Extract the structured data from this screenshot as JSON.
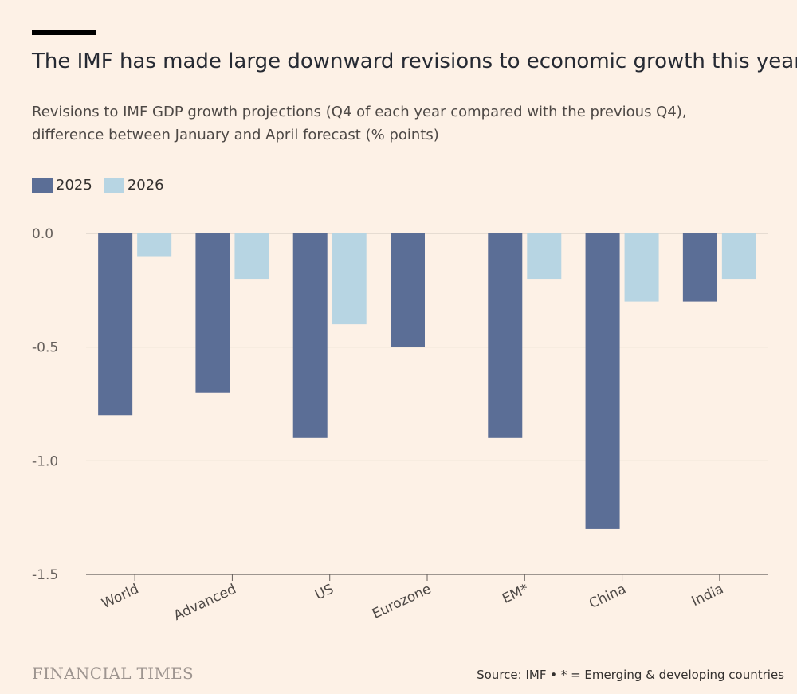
{
  "header": {
    "title": "The IMF has made large downward revisions to economic growth this year",
    "subtitle": "Revisions to IMF GDP growth projections (Q4 of each year compared with the previous Q4), difference between January and April forecast (% points)"
  },
  "footer": {
    "logo": "FINANCIAL TIMES",
    "source": "Source: IMF • * = Emerging & developing countries"
  },
  "colors": {
    "background": "#fdf1e6",
    "series_2025": "#5b6e96",
    "series_2026": "#b7d5e3",
    "grid": "#cfc6bd",
    "axis": "#66605c"
  },
  "chart_data": {
    "type": "bar",
    "categories": [
      "World",
      "Advanced",
      "US",
      "Eurozone",
      "EM*",
      "China",
      "India"
    ],
    "series": [
      {
        "name": "2025",
        "values": [
          -0.8,
          -0.7,
          -0.9,
          -0.5,
          -0.9,
          -1.3,
          -0.3
        ]
      },
      {
        "name": "2026",
        "values": [
          -0.1,
          -0.2,
          -0.4,
          0.0,
          -0.2,
          -0.3,
          -0.2
        ]
      }
    ],
    "ylim": [
      -1.5,
      0.0
    ],
    "yticks": [
      0.0,
      -0.5,
      -1.0,
      -1.5
    ],
    "ytick_labels": [
      "0.0",
      "-0.5",
      "-1.0",
      "-1.5"
    ],
    "grid": true,
    "legend": "top-left"
  }
}
